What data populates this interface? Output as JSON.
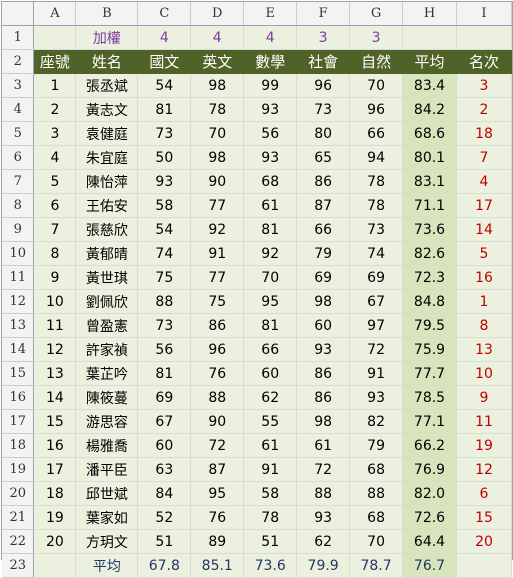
{
  "sheet": {
    "column_letters": [
      "A",
      "B",
      "C",
      "D",
      "E",
      "F",
      "G",
      "H",
      "I"
    ],
    "row_numbers": [
      "1",
      "2",
      "3",
      "4",
      "5",
      "6",
      "7",
      "8",
      "9",
      "10",
      "11",
      "12",
      "13",
      "14",
      "15",
      "16",
      "17",
      "18",
      "19",
      "20",
      "21",
      "22",
      "23"
    ],
    "weights": {
      "label": "加權",
      "values": [
        "4",
        "4",
        "4",
        "3",
        "3"
      ]
    },
    "headers": [
      "座號",
      "姓名",
      "國文",
      "英文",
      "數學",
      "社會",
      "自然",
      "平均",
      "名次"
    ],
    "students": [
      [
        "1",
        "張丞斌",
        "54",
        "98",
        "99",
        "96",
        "70",
        "83.4",
        "3"
      ],
      [
        "2",
        "黃志文",
        "81",
        "78",
        "93",
        "73",
        "96",
        "84.2",
        "2"
      ],
      [
        "3",
        "袁健庭",
        "73",
        "70",
        "56",
        "80",
        "66",
        "68.6",
        "18"
      ],
      [
        "4",
        "朱宜庭",
        "50",
        "98",
        "93",
        "65",
        "94",
        "80.1",
        "7"
      ],
      [
        "5",
        "陳怡萍",
        "93",
        "90",
        "68",
        "86",
        "78",
        "83.1",
        "4"
      ],
      [
        "6",
        "王佑安",
        "58",
        "77",
        "61",
        "87",
        "78",
        "71.1",
        "17"
      ],
      [
        "7",
        "張慈欣",
        "54",
        "92",
        "81",
        "66",
        "73",
        "73.6",
        "14"
      ],
      [
        "8",
        "黃郁晴",
        "74",
        "91",
        "92",
        "79",
        "74",
        "82.6",
        "5"
      ],
      [
        "9",
        "黃世琪",
        "75",
        "77",
        "70",
        "69",
        "69",
        "72.3",
        "16"
      ],
      [
        "10",
        "劉佩欣",
        "88",
        "75",
        "95",
        "98",
        "67",
        "84.8",
        "1"
      ],
      [
        "11",
        "曾盈憲",
        "73",
        "86",
        "81",
        "60",
        "97",
        "79.5",
        "8"
      ],
      [
        "12",
        "許家禎",
        "56",
        "96",
        "66",
        "93",
        "72",
        "75.9",
        "13"
      ],
      [
        "13",
        "葉芷吟",
        "81",
        "76",
        "60",
        "86",
        "91",
        "77.7",
        "10"
      ],
      [
        "14",
        "陳筱蔓",
        "69",
        "88",
        "62",
        "86",
        "93",
        "78.5",
        "9"
      ],
      [
        "15",
        "游思容",
        "67",
        "90",
        "55",
        "98",
        "82",
        "77.1",
        "11"
      ],
      [
        "16",
        "楊雅喬",
        "60",
        "72",
        "61",
        "61",
        "79",
        "66.2",
        "19"
      ],
      [
        "17",
        "潘平臣",
        "63",
        "87",
        "91",
        "72",
        "68",
        "76.9",
        "12"
      ],
      [
        "18",
        "邱世斌",
        "84",
        "95",
        "58",
        "88",
        "88",
        "82.0",
        "6"
      ],
      [
        "19",
        "葉家如",
        "52",
        "76",
        "78",
        "93",
        "68",
        "72.6",
        "15"
      ],
      [
        "20",
        "方玥文",
        "51",
        "89",
        "51",
        "62",
        "70",
        "64.4",
        "20"
      ]
    ],
    "footer": {
      "label": "平均",
      "values": [
        "67.8",
        "85.1",
        "73.6",
        "79.9",
        "78.7",
        "76.7"
      ]
    },
    "colors": {
      "header_bg": "#4f6228",
      "header_text": "#ffffff",
      "cell_bg": "#ebf1de",
      "avg_bg": "#d8e4bc",
      "rank_text": "#c00000",
      "weights_text": "#7a3fa0",
      "footer_text": "#1f3864"
    }
  }
}
